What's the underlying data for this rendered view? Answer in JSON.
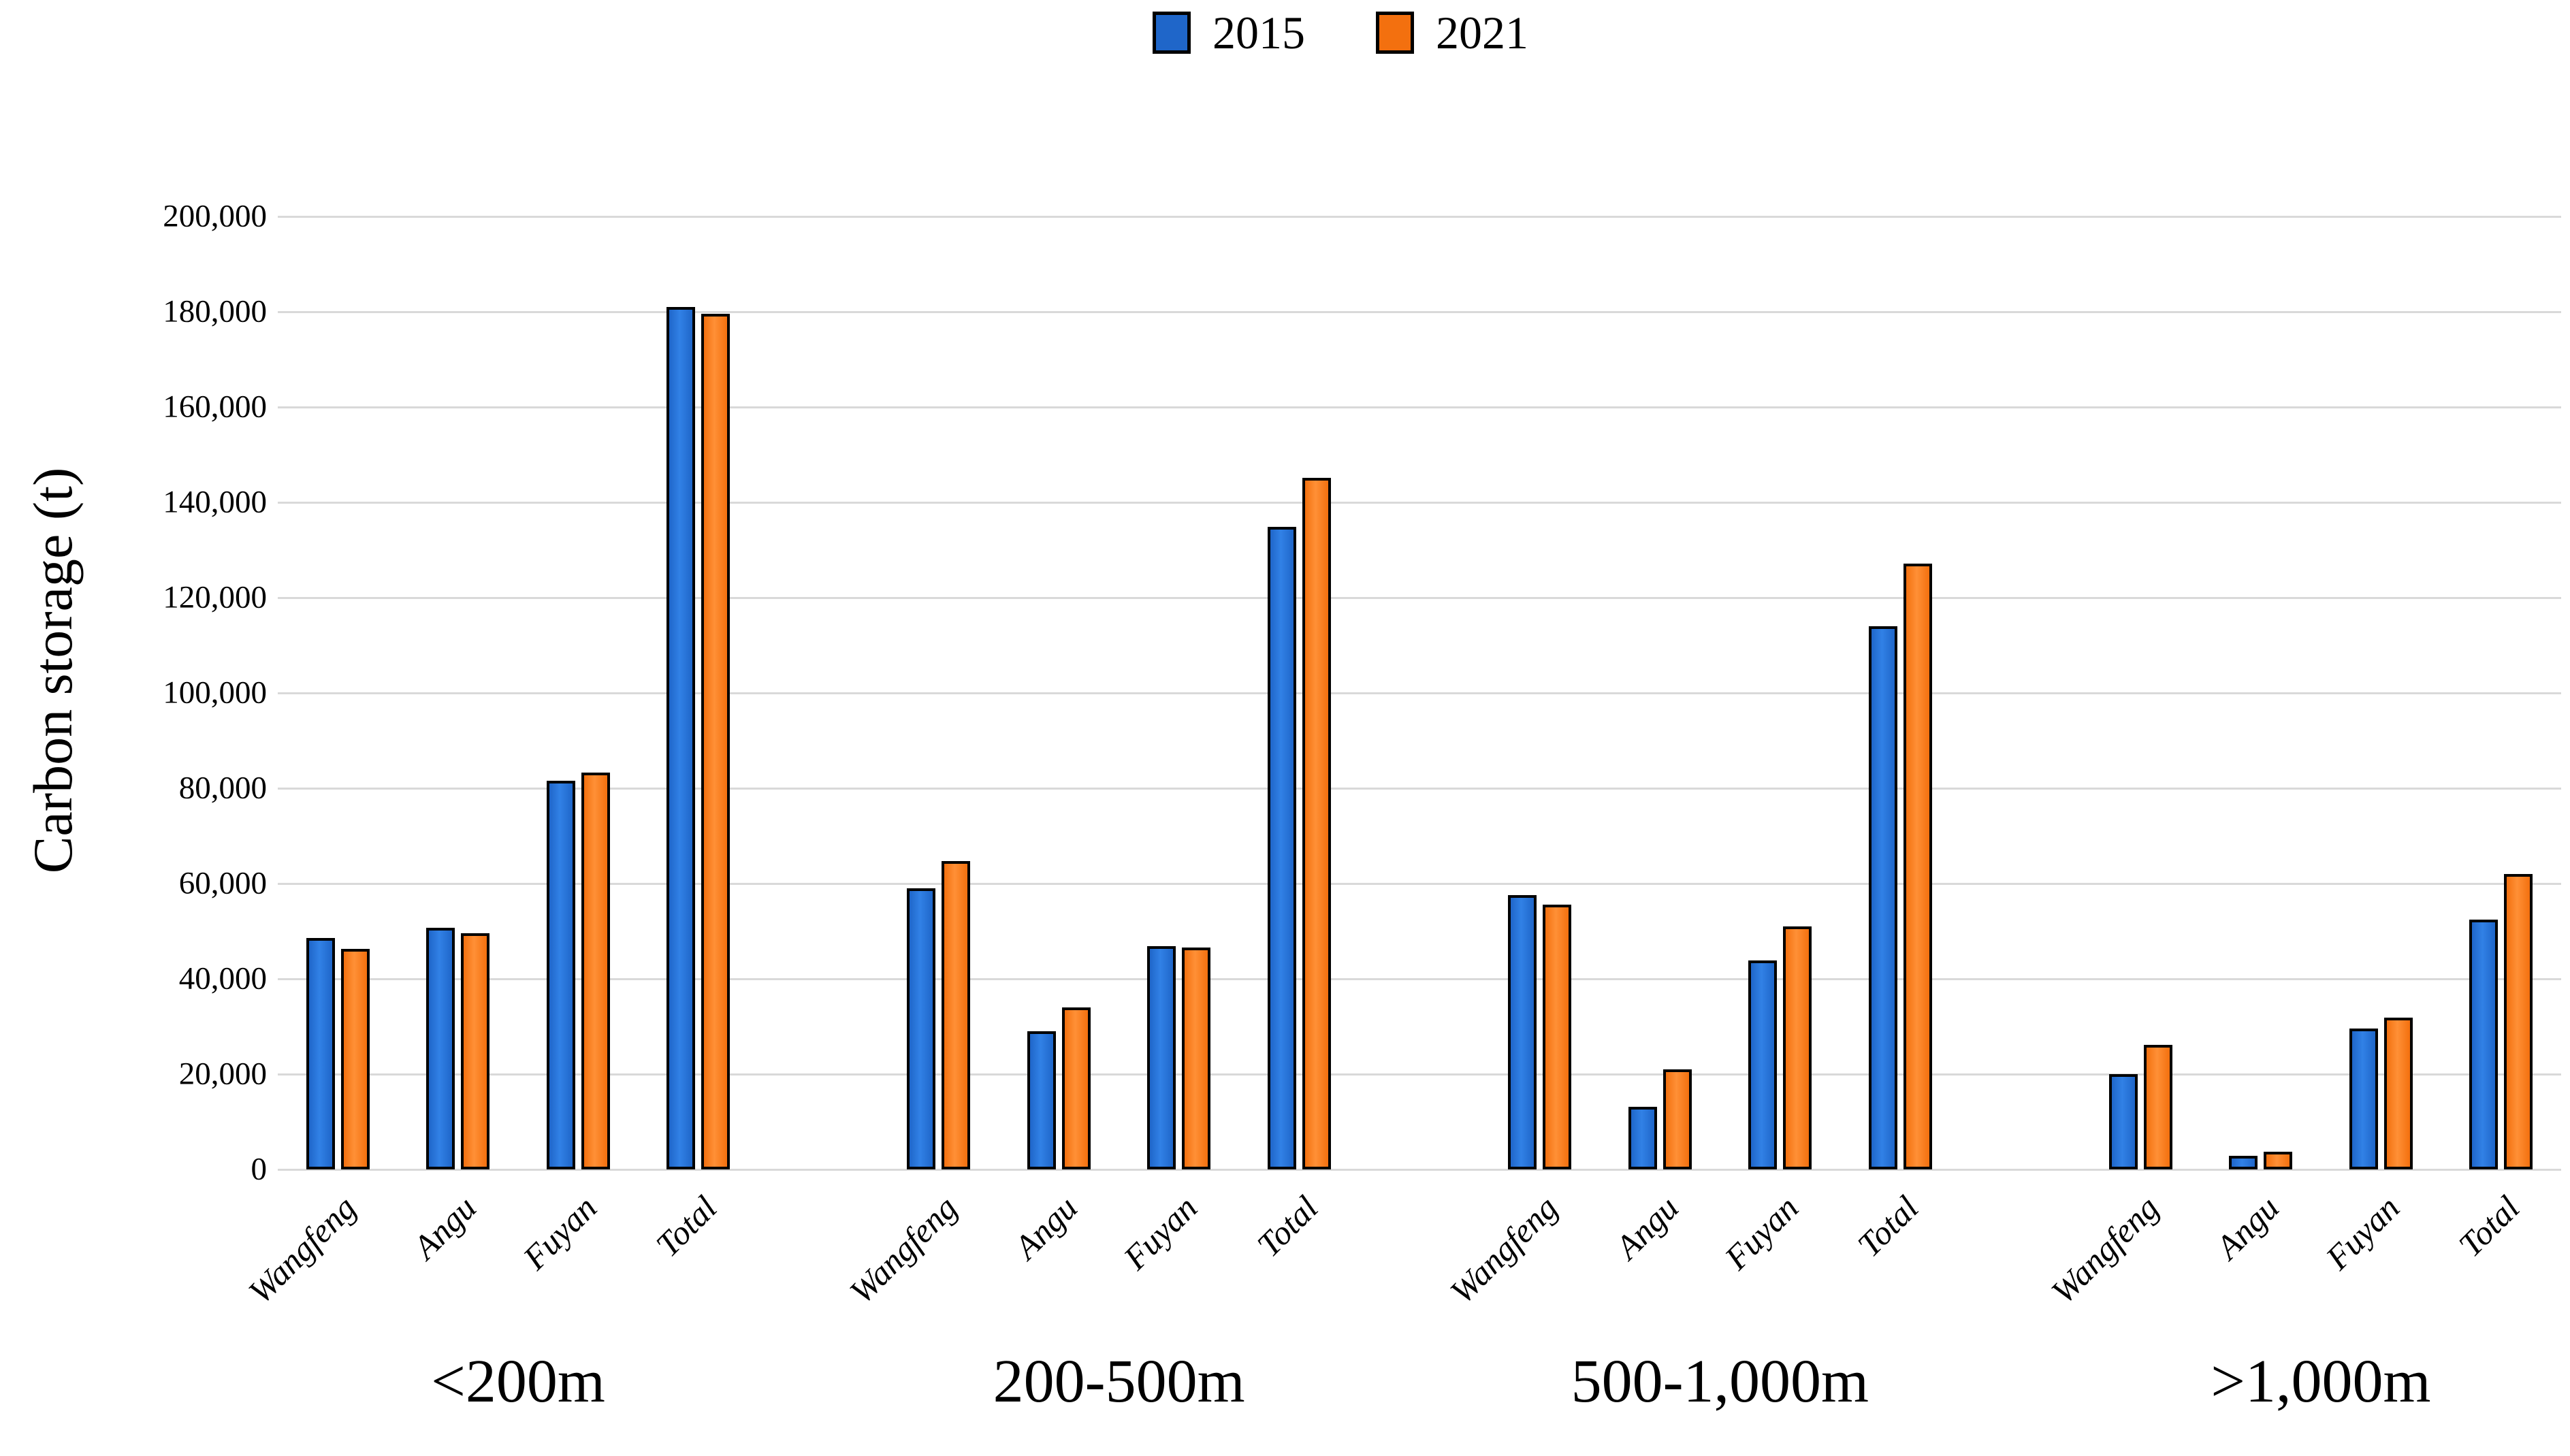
{
  "legend": {
    "items": [
      {
        "label": "2015",
        "fill": "#1f66c9",
        "fill_light": "#3181e6"
      },
      {
        "label": "2021",
        "fill": "#f3700f",
        "fill_light": "#ff9036"
      }
    ]
  },
  "y_axis": {
    "title": "Carbon storage (t)",
    "ticks": [
      "0",
      "20,000",
      "40,000",
      "60,000",
      "80,000",
      "100,000",
      "120,000",
      "140,000",
      "160,000",
      "180,000",
      "200,000"
    ],
    "max": 200000,
    "step": 20000
  },
  "colors": {
    "bar_outline": "#000000",
    "gridline": "#d9d9d9",
    "text": "#000000",
    "background": "#ffffff"
  },
  "chart_data": {
    "type": "bar",
    "title": "",
    "xlabel": "",
    "ylabel": "Carbon storage (t)",
    "ylim": [
      0,
      200000
    ],
    "grid": true,
    "legend_position": "top-center",
    "series_names": [
      "2015",
      "2021"
    ],
    "categories": [
      "Wangfeng",
      "Angu",
      "Fuyan",
      "Total"
    ],
    "groups": [
      {
        "label": "<200m",
        "series": [
          {
            "name": "2015",
            "values": [
              48600,
              50700,
              81600,
              181000
            ]
          },
          {
            "name": "2021",
            "values": [
              46300,
              49600,
              83300,
              179500
            ]
          }
        ]
      },
      {
        "label": "200-500m",
        "series": [
          {
            "name": "2015",
            "values": [
              59000,
              29000,
              46800,
              134800
            ]
          },
          {
            "name": "2021",
            "values": [
              64700,
              34000,
              46500,
              145200
            ]
          }
        ]
      },
      {
        "label": "500-1,000m",
        "series": [
          {
            "name": "2015",
            "values": [
              57500,
              13200,
              43800,
              114000
            ]
          },
          {
            "name": "2021",
            "values": [
              55500,
              21000,
              51000,
              127200
            ]
          }
        ]
      },
      {
        "label": ">1,000m",
        "series": [
          {
            "name": "2015",
            "values": [
              20000,
              2900,
              29500,
              52400
            ]
          },
          {
            "name": "2021",
            "values": [
              26200,
              3700,
              31800,
              62000
            ]
          }
        ]
      }
    ]
  }
}
